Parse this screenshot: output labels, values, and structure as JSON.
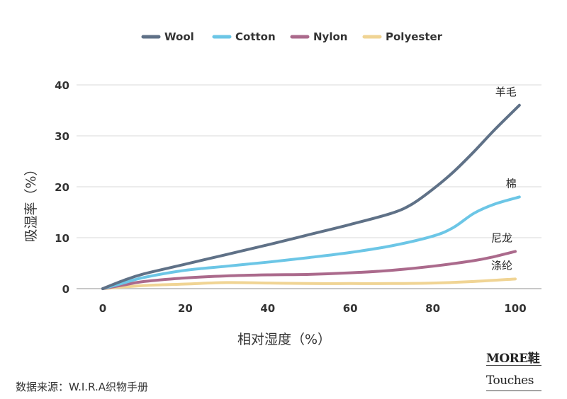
{
  "chart_data": {
    "type": "line",
    "xlabel": "相对湿度（%）",
    "ylabel": "吸湿率（%）",
    "xlim": [
      0,
      100
    ],
    "ylim": [
      0,
      40
    ],
    "xticks": [
      "0",
      "20",
      "40",
      "60",
      "80",
      "100"
    ],
    "yticks": [
      "0",
      "10",
      "20",
      "30",
      "40"
    ],
    "grid": "horizontal",
    "legend_position": "top-center",
    "series": [
      {
        "name": "Wool",
        "end_label": "羊毛",
        "color": "#5f7187",
        "x": [
          0,
          5,
          10,
          20,
          30,
          40,
          50,
          60,
          70,
          75,
          80,
          85,
          90,
          95,
          101
        ],
        "y": [
          0,
          1.6,
          2.9,
          4.8,
          6.7,
          8.6,
          10.6,
          12.6,
          14.8,
          16.6,
          19.5,
          22.9,
          26.9,
          31.2,
          36
        ]
      },
      {
        "name": "Cotton",
        "end_label": "棉",
        "color": "#6cc6e6",
        "x": [
          0,
          5,
          10,
          20,
          30,
          40,
          50,
          60,
          70,
          80,
          85,
          90,
          95,
          101
        ],
        "y": [
          0,
          1.1,
          2.2,
          3.6,
          4.4,
          5.2,
          6.1,
          7.1,
          8.4,
          10.3,
          12.0,
          14.8,
          16.6,
          18
        ]
      },
      {
        "name": "Nylon",
        "end_label": "尼龙",
        "color": "#ab6a8c",
        "x": [
          0,
          5,
          10,
          20,
          30,
          40,
          50,
          60,
          70,
          80,
          90,
          95,
          100
        ],
        "y": [
          0,
          0.7,
          1.4,
          2.1,
          2.5,
          2.7,
          2.8,
          3.1,
          3.6,
          4.4,
          5.5,
          6.3,
          7.3
        ]
      },
      {
        "name": "Polyester",
        "end_label": "涤纶",
        "color": "#f0d494",
        "x": [
          0,
          10,
          20,
          30,
          40,
          50,
          60,
          70,
          80,
          90,
          100
        ],
        "y": [
          0,
          0.6,
          0.9,
          1.2,
          1.1,
          1.0,
          1.0,
          1.0,
          1.1,
          1.4,
          1.9
        ]
      }
    ]
  },
  "footer": {
    "source": "数据来源：W.I.R.A织物手册"
  },
  "logo": {
    "line1": "MORE鞋",
    "line2": "Touches"
  }
}
